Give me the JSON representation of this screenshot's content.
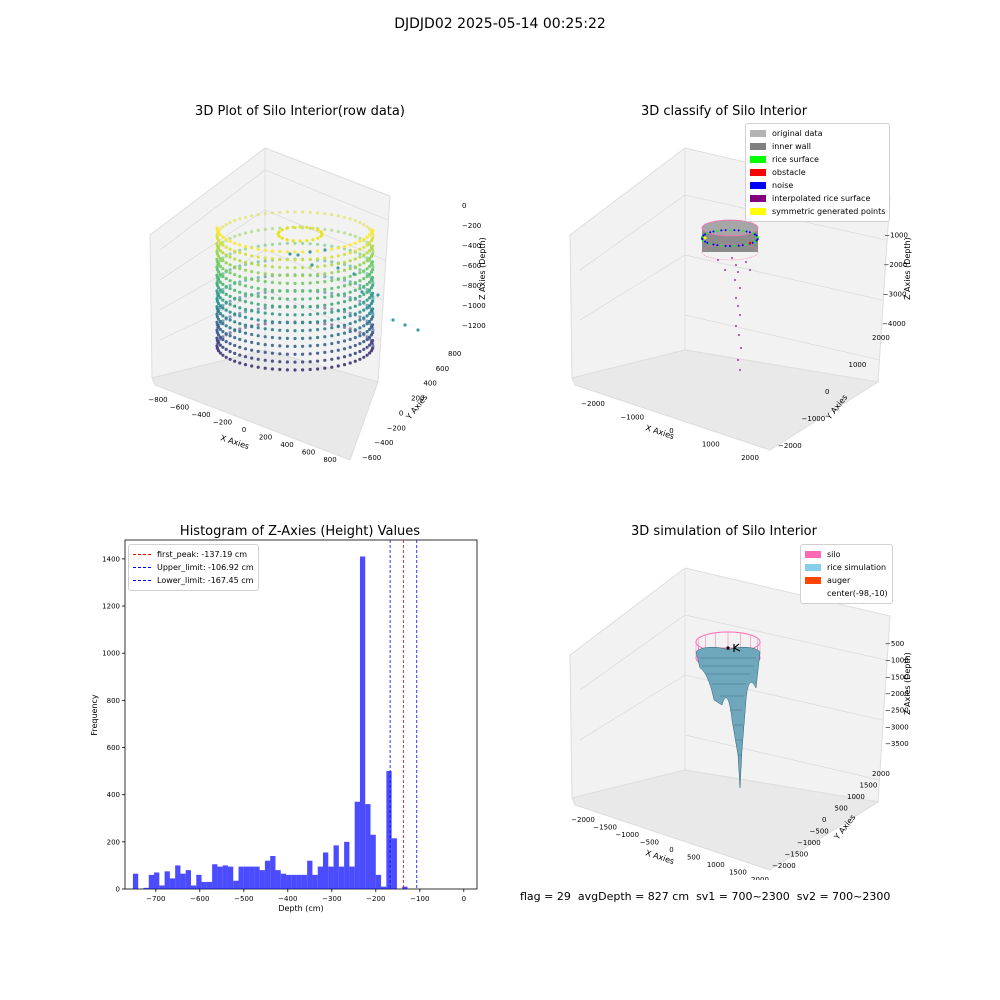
{
  "figure": {
    "suptitle": "DJDJD02 2025-05-14 00:25:22",
    "footer": {
      "flag": "flag = 29",
      "avg_depth": "avgDepth = 827 cm",
      "sv1": "sv1 = 700~2300",
      "sv2": "sv2 = 700~2300"
    }
  },
  "chart_data": [
    {
      "type": "scatter",
      "projection": "3d",
      "title": "3D Plot of Silo Interior(row data)",
      "xlabel": "X Axies",
      "ylabel": "Y Axies",
      "zlabel": "Z Axies (Depth)",
      "x_ticks": [
        "−800",
        "−600",
        "−400",
        "−200",
        "0",
        "200",
        "400",
        "600",
        "800"
      ],
      "y_ticks": [
        "−600",
        "−400",
        "−200",
        "0",
        "200",
        "400",
        "600",
        "800"
      ],
      "z_ticks": [
        "0",
        "−200",
        "−400",
        "−600",
        "−800",
        "−1000",
        "−1200"
      ],
      "xlim": [
        -900,
        900
      ],
      "ylim": [
        -650,
        850
      ],
      "zlim": [
        -1350,
        50
      ],
      "colormap": "viridis",
      "cylinder_radius": 620,
      "cylinder_center": [
        -98,
        -10
      ],
      "cylinder_z_range": [
        -1250,
        -120
      ],
      "notes": "points colored by depth; sparse scatter outside ring"
    },
    {
      "type": "scatter",
      "projection": "3d",
      "title": "3D classify of Silo Interior",
      "xlabel": "X Axies",
      "ylabel": "Y Axies",
      "zlabel": "Z Axies (Depth)",
      "x_ticks": [
        "−2000",
        "−1000",
        "0",
        "1000",
        "2000"
      ],
      "y_ticks": [
        "−2000",
        "−1000",
        "0",
        "1000",
        "2000"
      ],
      "z_ticks": [
        "0",
        "−1000",
        "−2000",
        "−3000",
        "−4000"
      ],
      "legend": [
        {
          "label": "original data",
          "color": "#b3b3b3"
        },
        {
          "label": "inner wall",
          "color": "#808080"
        },
        {
          "label": "rice surface",
          "color": "#00ff00"
        },
        {
          "label": "obstacle",
          "color": "#ff0000"
        },
        {
          "label": "noise",
          "color": "#0000ff"
        },
        {
          "label": "interpolated rice surface",
          "color": "#800080"
        },
        {
          "label": "symmetric generated points",
          "color": "#ffff00"
        }
      ],
      "legend_position": "top-right"
    },
    {
      "type": "bar",
      "title": "Histogram of Z-Axies (Height) Values",
      "xlabel": "Depth (cm)",
      "ylabel": "Frequency",
      "xlim": [
        -770,
        30
      ],
      "ylim": [
        0,
        1480
      ],
      "x_ticks": [
        -700,
        -600,
        -500,
        -400,
        -300,
        -200,
        -100,
        0
      ],
      "x_tick_labels": [
        "−700",
        "−600",
        "−500",
        "−400",
        "−300",
        "−200",
        "−100",
        "0"
      ],
      "y_ticks": [
        0,
        200,
        400,
        600,
        800,
        1000,
        1200,
        1400
      ],
      "bin_width": 12,
      "bins": [
        [
          -752,
          65
        ],
        [
          -728,
          5
        ],
        [
          -716,
          60
        ],
        [
          -704,
          70
        ],
        [
          -692,
          15
        ],
        [
          -680,
          75
        ],
        [
          -668,
          45
        ],
        [
          -656,
          100
        ],
        [
          -644,
          65
        ],
        [
          -632,
          80
        ],
        [
          -620,
          15
        ],
        [
          -608,
          60
        ],
        [
          -596,
          30
        ],
        [
          -584,
          30
        ],
        [
          -572,
          105
        ],
        [
          -560,
          95
        ],
        [
          -548,
          100
        ],
        [
          -536,
          95
        ],
        [
          -524,
          35
        ],
        [
          -512,
          95
        ],
        [
          -500,
          95
        ],
        [
          -488,
          95
        ],
        [
          -476,
          95
        ],
        [
          -464,
          80
        ],
        [
          -452,
          120
        ],
        [
          -440,
          140
        ],
        [
          -428,
          80
        ],
        [
          -416,
          65
        ],
        [
          -404,
          60
        ],
        [
          -392,
          60
        ],
        [
          -380,
          60
        ],
        [
          -368,
          60
        ],
        [
          -356,
          120
        ],
        [
          -344,
          60
        ],
        [
          -332,
          95
        ],
        [
          -320,
          155
        ],
        [
          -308,
          95
        ],
        [
          -296,
          185
        ],
        [
          -284,
          95
        ],
        [
          -272,
          200
        ],
        [
          -260,
          95
        ],
        [
          -248,
          370
        ],
        [
          -236,
          1410
        ],
        [
          -224,
          360
        ],
        [
          -212,
          230
        ],
        [
          -200,
          60
        ],
        [
          -188,
          10
        ],
        [
          -176,
          500
        ],
        [
          -164,
          215
        ],
        [
          -152,
          0
        ],
        [
          -140,
          10
        ],
        [
          -128,
          0
        ]
      ],
      "bar_color": "#0000ff",
      "legend": [
        {
          "label": "first_peak: -137.19 cm",
          "value": -137.19,
          "color": "#ff0000"
        },
        {
          "label": "Upper_limit: -106.92 cm",
          "value": -106.92,
          "color": "#0000ff"
        },
        {
          "label": "Lower_limit: -167.45 cm",
          "value": -167.45,
          "color": "#0000ff"
        }
      ],
      "legend_position": "top-left"
    },
    {
      "type": "area",
      "projection": "3d",
      "title": "3D simulation of Silo Interior",
      "xlabel": "X Axies",
      "ylabel": "Y Axies",
      "zlabel": "Z Axies (Depth)",
      "x_ticks": [
        "−2000",
        "−1500",
        "−1000",
        "−500",
        "0",
        "500",
        "1000",
        "1500",
        "2000"
      ],
      "y_ticks": [
        "−2000",
        "−1500",
        "−1000",
        "−500",
        "0",
        "500",
        "1000",
        "1500",
        "2000"
      ],
      "z_ticks": [
        "−500",
        "−1000",
        "−1500",
        "−2000",
        "−2500",
        "−3000",
        "−3500"
      ],
      "legend": [
        {
          "label": "silo",
          "color": "#ff69b4"
        },
        {
          "label": "rice simulation",
          "color": "#87ceeb"
        },
        {
          "label": "auger",
          "color": "#ff4500"
        },
        {
          "label": "center(-98,-10)",
          "color": "#ffffff"
        }
      ],
      "legend_position": "top-right"
    }
  ]
}
